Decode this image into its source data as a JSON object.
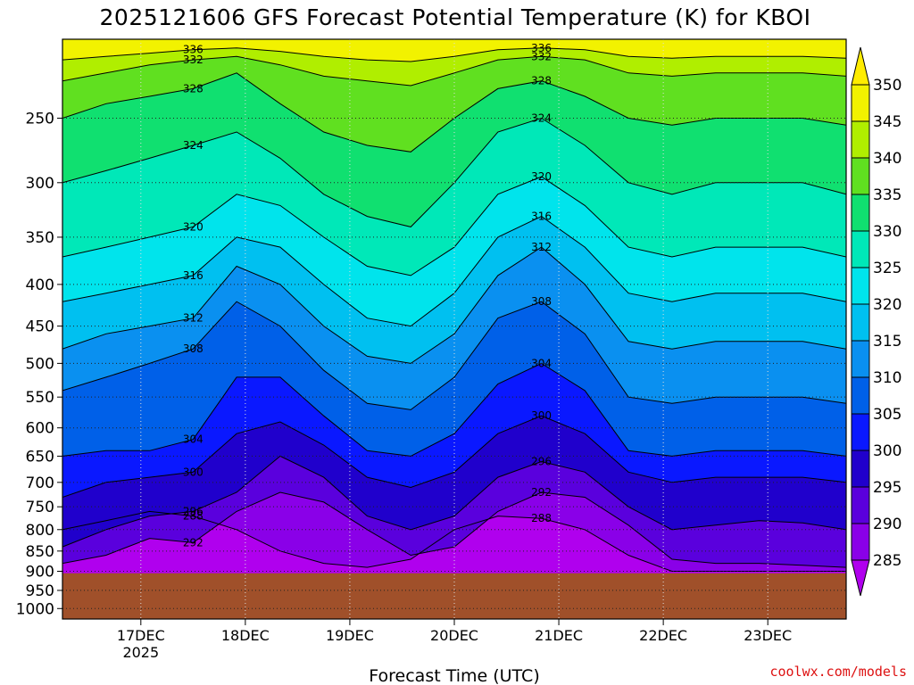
{
  "chart_data": {
    "type": "heatmap",
    "title": "2025121606 GFS Forecast Potential Temperature (K) for KBOI",
    "xlabel": "Forecast Time (UTC)",
    "ylabel": "",
    "credit": "coolwx.com/models",
    "x_ticks": [
      {
        "label": "17DEC",
        "sublabel": "2025",
        "t": 18
      },
      {
        "label": "18DEC",
        "t": 42
      },
      {
        "label": "19DEC",
        "t": 66
      },
      {
        "label": "20DEC",
        "t": 90
      },
      {
        "label": "21DEC",
        "t": 114
      },
      {
        "label": "22DEC",
        "t": 138
      },
      {
        "label": "23DEC",
        "t": 162
      }
    ],
    "xlim_hours": [
      0,
      180
    ],
    "y_ticks": [
      250,
      300,
      350,
      400,
      450,
      500,
      550,
      600,
      650,
      700,
      750,
      800,
      850,
      900,
      950,
      1000
    ],
    "y_scale": "log-pressure",
    "ylim_hPa": [
      1030,
      200
    ],
    "surface_pressure_hPa": 905,
    "colorbar": {
      "levels": [
        285,
        290,
        295,
        300,
        305,
        310,
        315,
        320,
        325,
        330,
        335,
        340,
        345,
        350
      ],
      "colors": [
        "#b000ee",
        "#8a00e8",
        "#5a00dd",
        "#2000cc",
        "#0a18ff",
        "#0060e8",
        "#0a90f0",
        "#00c0f0",
        "#00e4ec",
        "#00e8b8",
        "#10e070",
        "#60e020",
        "#b0ee00",
        "#f2f200",
        "#ffec00"
      ]
    },
    "contour_levels": [
      288,
      292,
      296,
      300,
      304,
      308,
      312,
      316,
      320,
      324,
      328,
      332,
      336
    ],
    "series": [
      {
        "name": "288",
        "p": [
          800,
          780,
          760,
          770,
          800,
          850,
          880,
          890,
          870,
          800,
          770,
          775,
          800,
          860,
          900,
          900,
          900,
          900,
          900
        ]
      },
      {
        "name": "292",
        "p": [
          880,
          860,
          820,
          830,
          760,
          720,
          740,
          800,
          860,
          840,
          760,
          720,
          730,
          790,
          870,
          880,
          880,
          885,
          890
        ]
      },
      {
        "name": "296",
        "p": [
          840,
          800,
          770,
          760,
          720,
          650,
          690,
          770,
          800,
          770,
          690,
          660,
          680,
          750,
          800,
          790,
          780,
          785,
          800
        ]
      },
      {
        "name": "300",
        "p": [
          730,
          700,
          690,
          680,
          610,
          590,
          630,
          690,
          710,
          680,
          610,
          580,
          610,
          680,
          700,
          690,
          690,
          690,
          700
        ]
      },
      {
        "name": "304",
        "p": [
          650,
          640,
          640,
          620,
          520,
          520,
          580,
          640,
          650,
          610,
          530,
          500,
          540,
          640,
          650,
          640,
          640,
          640,
          650
        ]
      },
      {
        "name": "308",
        "p": [
          540,
          520,
          500,
          480,
          420,
          450,
          510,
          560,
          570,
          520,
          440,
          420,
          460,
          550,
          560,
          550,
          550,
          550,
          560
        ]
      },
      {
        "name": "312",
        "p": [
          480,
          460,
          450,
          440,
          380,
          400,
          450,
          490,
          500,
          460,
          390,
          360,
          400,
          470,
          480,
          470,
          470,
          470,
          480
        ]
      },
      {
        "name": "316",
        "p": [
          420,
          410,
          400,
          390,
          350,
          360,
          400,
          440,
          450,
          410,
          350,
          330,
          360,
          410,
          420,
          410,
          410,
          410,
          420
        ]
      },
      {
        "name": "320",
        "p": [
          370,
          360,
          350,
          340,
          310,
          320,
          350,
          380,
          390,
          360,
          310,
          295,
          320,
          360,
          370,
          360,
          360,
          360,
          370
        ]
      },
      {
        "name": "324",
        "p": [
          300,
          290,
          280,
          270,
          260,
          280,
          310,
          330,
          340,
          300,
          260,
          250,
          270,
          300,
          310,
          300,
          300,
          300,
          310
        ]
      },
      {
        "name": "328",
        "p": [
          250,
          240,
          235,
          230,
          220,
          240,
          260,
          270,
          275,
          250,
          230,
          225,
          235,
          250,
          255,
          250,
          250,
          250,
          255
        ]
      },
      {
        "name": "332",
        "p": [
          225,
          220,
          215,
          212,
          210,
          215,
          222,
          225,
          228,
          220,
          212,
          210,
          212,
          220,
          222,
          220,
          220,
          220,
          222
        ]
      },
      {
        "name": "336",
        "p": [
          212,
          210,
          208,
          206,
          205,
          207,
          210,
          212,
          213,
          210,
          206,
          205,
          206,
          210,
          211,
          210,
          210,
          210,
          211
        ]
      }
    ],
    "series_hours": [
      0,
      10,
      20,
      30,
      40,
      50,
      60,
      70,
      80,
      90,
      100,
      110,
      120,
      130,
      140,
      150,
      160,
      170,
      180
    ]
  }
}
